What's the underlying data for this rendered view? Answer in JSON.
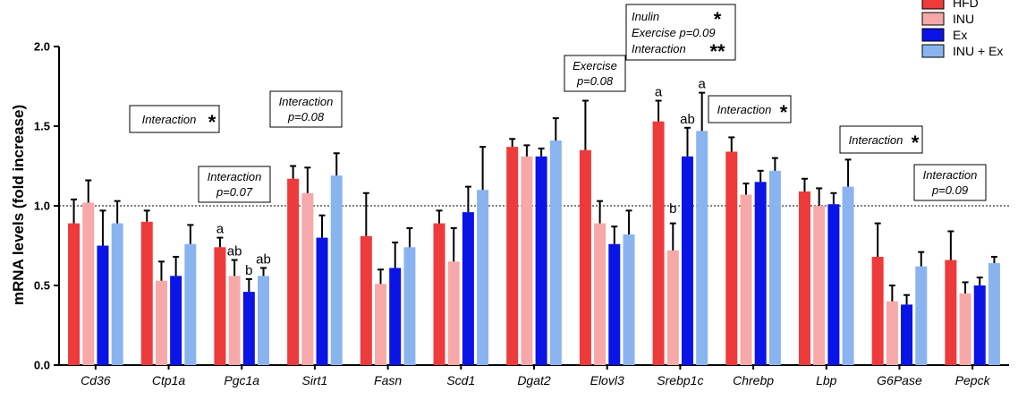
{
  "chart_data": {
    "type": "bar",
    "ylabel": "mRNA levels  (fold increase)",
    "yticks": [
      "0.0",
      "0.5",
      "1.0",
      "1.5",
      "2.0"
    ],
    "ylim": [
      0,
      2.0
    ],
    "reference_line": 1.0,
    "categories": [
      "Cd36",
      "Ctp1a",
      "Pgc1a",
      "Sirt1",
      "Fasn",
      "Scd1",
      "Dgat2",
      "Elovl3",
      "Srebp1c",
      "Chrebp",
      "Lbp",
      "G6Pase",
      "Pepck"
    ],
    "series": [
      {
        "name": "HFD",
        "color": "#ee3a3a",
        "values": [
          0.89,
          0.9,
          0.74,
          1.17,
          0.81,
          0.89,
          1.37,
          1.35,
          1.53,
          1.34,
          1.09,
          0.68,
          0.66
        ],
        "errors": [
          0.15,
          0.07,
          0.06,
          0.08,
          0.27,
          0.08,
          0.05,
          0.31,
          0.13,
          0.09,
          0.08,
          0.21,
          0.18
        ]
      },
      {
        "name": "INU",
        "color": "#f7a8a8",
        "values": [
          1.02,
          0.53,
          0.56,
          1.08,
          0.51,
          0.65,
          1.31,
          0.89,
          0.72,
          1.07,
          1.0,
          0.4,
          0.45
        ],
        "errors": [
          0.14,
          0.12,
          0.1,
          0.16,
          0.09,
          0.21,
          0.07,
          0.14,
          0.17,
          0.07,
          0.11,
          0.1,
          0.07
        ]
      },
      {
        "name": "Ex",
        "color": "#0a14e6",
        "values": [
          0.75,
          0.56,
          0.46,
          0.8,
          0.61,
          0.96,
          1.31,
          0.76,
          1.31,
          1.15,
          1.01,
          0.38,
          0.5
        ],
        "errors": [
          0.22,
          0.12,
          0.08,
          0.14,
          0.16,
          0.16,
          0.05,
          0.11,
          0.18,
          0.07,
          0.07,
          0.06,
          0.05
        ]
      },
      {
        "name": "INU + Ex",
        "color": "#8ab4f0",
        "values": [
          0.89,
          0.76,
          0.56,
          1.19,
          0.74,
          1.1,
          1.41,
          0.82,
          1.47,
          1.22,
          1.12,
          0.62,
          0.64
        ],
        "errors": [
          0.14,
          0.12,
          0.05,
          0.14,
          0.12,
          0.27,
          0.14,
          0.15,
          0.24,
          0.08,
          0.17,
          0.09,
          0.04
        ]
      }
    ],
    "significance_letters": [
      {
        "category": "Pgc1a",
        "series": "HFD",
        "text": "a"
      },
      {
        "category": "Pgc1a",
        "series": "INU",
        "text": "ab"
      },
      {
        "category": "Pgc1a",
        "series": "Ex",
        "text": "b"
      },
      {
        "category": "Pgc1a",
        "series": "INU + Ex",
        "text": "ab"
      },
      {
        "category": "Srebp1c",
        "series": "HFD",
        "text": "a"
      },
      {
        "category": "Srebp1c",
        "series": "INU",
        "text": "b"
      },
      {
        "category": "Srebp1c",
        "series": "Ex",
        "text": "ab"
      },
      {
        "category": "Srebp1c",
        "series": "INU + Ex",
        "text": "a"
      }
    ],
    "annotations": [
      {
        "category": "Ctp1a",
        "lines": [
          "Interaction"
        ],
        "star": "*"
      },
      {
        "category": "Pgc1a",
        "lines": [
          "Interaction",
          "p=0.07"
        ]
      },
      {
        "category": "Sirt1",
        "lines": [
          "Interaction",
          "p=0.08"
        ]
      },
      {
        "category": "Elovl3",
        "lines": [
          "Exercise",
          "p=0.08"
        ]
      },
      {
        "category": "Srebp1c",
        "lines": [
          "Inulin",
          "Exercise p=0.09",
          "Interaction"
        ],
        "stars": [
          "*",
          "",
          "**"
        ]
      },
      {
        "category": "Chrebp",
        "lines": [
          "Interaction"
        ],
        "star": "*"
      },
      {
        "category": "G6Pase",
        "lines": [
          "Interaction"
        ],
        "star": "*"
      },
      {
        "category": "Pepck",
        "lines": [
          "Interaction",
          "p=0.09"
        ]
      }
    ],
    "legend_position": "top-right",
    "grid": false
  }
}
